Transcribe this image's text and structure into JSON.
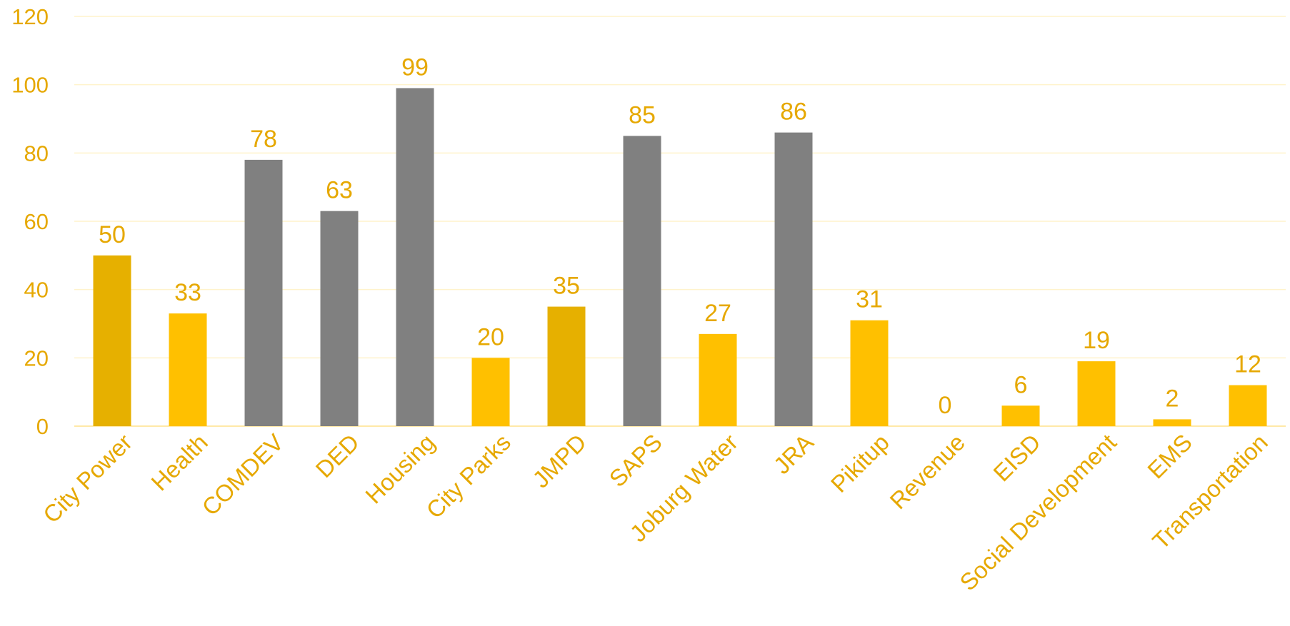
{
  "chart_data": {
    "type": "bar",
    "title": "",
    "xlabel": "",
    "ylabel": "",
    "categories": [
      "City Power",
      "Health",
      "COMDEV",
      "DED",
      "Housing",
      "City Parks",
      "JMPD",
      "SAPS",
      "Joburg Water",
      "JRA",
      "Pikitup",
      "Revenue",
      "EISD",
      "Social Development",
      "EMS",
      "Transportation"
    ],
    "values": [
      50,
      33,
      78,
      63,
      99,
      20,
      35,
      85,
      27,
      86,
      31,
      0,
      6,
      19,
      2,
      12
    ],
    "bar_colors": [
      "#E6B000",
      "#FFC000",
      "#808080",
      "#808080",
      "#808080",
      "#FFC000",
      "#E6B000",
      "#808080",
      "#FFC000",
      "#808080",
      "#FFC000",
      "#FFC000",
      "#FFC000",
      "#FFC000",
      "#FFC000",
      "#FFC000"
    ],
    "ylim": [
      0,
      120
    ],
    "yticks": [
      0,
      20,
      40,
      60,
      80,
      100,
      120
    ],
    "grid": true,
    "legend": "none",
    "colors": {
      "text": "#E6A800",
      "gridline": "#FFF3CC",
      "axis": "#FFE9A8"
    }
  }
}
